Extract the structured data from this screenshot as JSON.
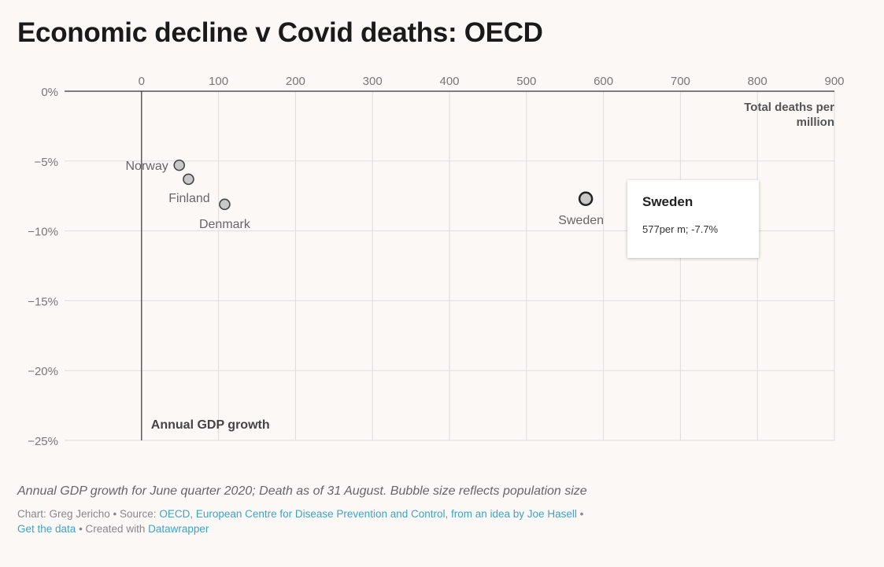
{
  "title": "Economic decline v Covid deaths: OECD",
  "chart_data": {
    "type": "scatter",
    "title": "Economic decline v Covid deaths: OECD",
    "xlabel": "Total deaths per million",
    "ylabel": "Annual GDP growth",
    "xlim": [
      -100,
      900
    ],
    "ylim": [
      -25,
      0
    ],
    "x_ticks": [
      0,
      100,
      200,
      300,
      400,
      500,
      600,
      700,
      800,
      900
    ],
    "x_tick_labels": [
      "0",
      "100",
      "200",
      "300",
      "400",
      "500",
      "600",
      "700",
      "800",
      "900"
    ],
    "y_ticks": [
      0,
      -5,
      -10,
      -15,
      -20,
      -25
    ],
    "y_tick_labels": [
      "0%",
      "−5%",
      "−10%",
      "−15%",
      "−20%",
      "−25%"
    ],
    "grid": true,
    "bubble_size_meaning": "population size",
    "points": [
      {
        "label": "Norway",
        "x": 49,
        "y": -5.3
      },
      {
        "label": "Finland",
        "x": 61,
        "y": -6.3
      },
      {
        "label": "Denmark",
        "x": 108,
        "y": -8.1
      },
      {
        "label": "Sweden",
        "x": 577,
        "y": -7.7,
        "highlighted": true
      }
    ]
  },
  "tooltip": {
    "title": "Sweden",
    "value": "577per m; -7.7%"
  },
  "caption": "Annual GDP growth for June quarter 2020; Death as of 31 August. Bubble size reflects population size",
  "footer": {
    "chart_prefix": "Chart: Greg Jericho • Source: ",
    "source_link": "OECD, European Centre for Disease Prevention and Control, from an idea by Joe Hasell",
    "separator": " •",
    "get_data_link": "Get the data",
    "created_prefix": " • Created with ",
    "datawrapper_link": "Datawrapper"
  },
  "colors": {
    "grid": "#dddddd",
    "axis": "#333333",
    "bubble_fill": "#c8c8c8",
    "bubble_stroke": "#444444",
    "link": "#3ca3c8"
  }
}
